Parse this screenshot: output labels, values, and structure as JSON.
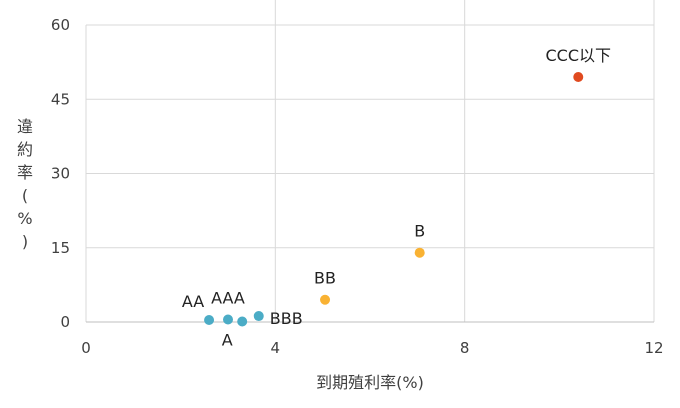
{
  "chart_data": {
    "type": "scatter",
    "xlabel": "到期殖利率(%)",
    "ylabel": "違約率(%)",
    "xlim": [
      0,
      12
    ],
    "ylim": [
      0,
      60
    ],
    "xticks": [
      0,
      4,
      8,
      12
    ],
    "yticks": [
      0,
      15,
      30,
      45,
      60
    ],
    "grid": true,
    "points": [
      {
        "label": "AA",
        "x": 2.6,
        "y": 0.4,
        "color": "#4bacc6",
        "label_pos": "upper-left"
      },
      {
        "label": "AAA",
        "x": 3.0,
        "y": 0.5,
        "color": "#4bacc6",
        "label_pos": "above"
      },
      {
        "label": "A",
        "x": 3.3,
        "y": 0.1,
        "color": "#4bacc6",
        "label_pos": "below-left"
      },
      {
        "label": "BBB",
        "x": 3.65,
        "y": 1.2,
        "color": "#4bacc6",
        "label_pos": "right"
      },
      {
        "label": "BB",
        "x": 5.05,
        "y": 4.5,
        "color": "#f9b233",
        "label_pos": "above"
      },
      {
        "label": "B",
        "x": 7.05,
        "y": 14.0,
        "color": "#f9b233",
        "label_pos": "above"
      },
      {
        "label": "CCC以下",
        "x": 10.4,
        "y": 49.5,
        "color": "#e04a1f",
        "label_pos": "above"
      }
    ]
  }
}
